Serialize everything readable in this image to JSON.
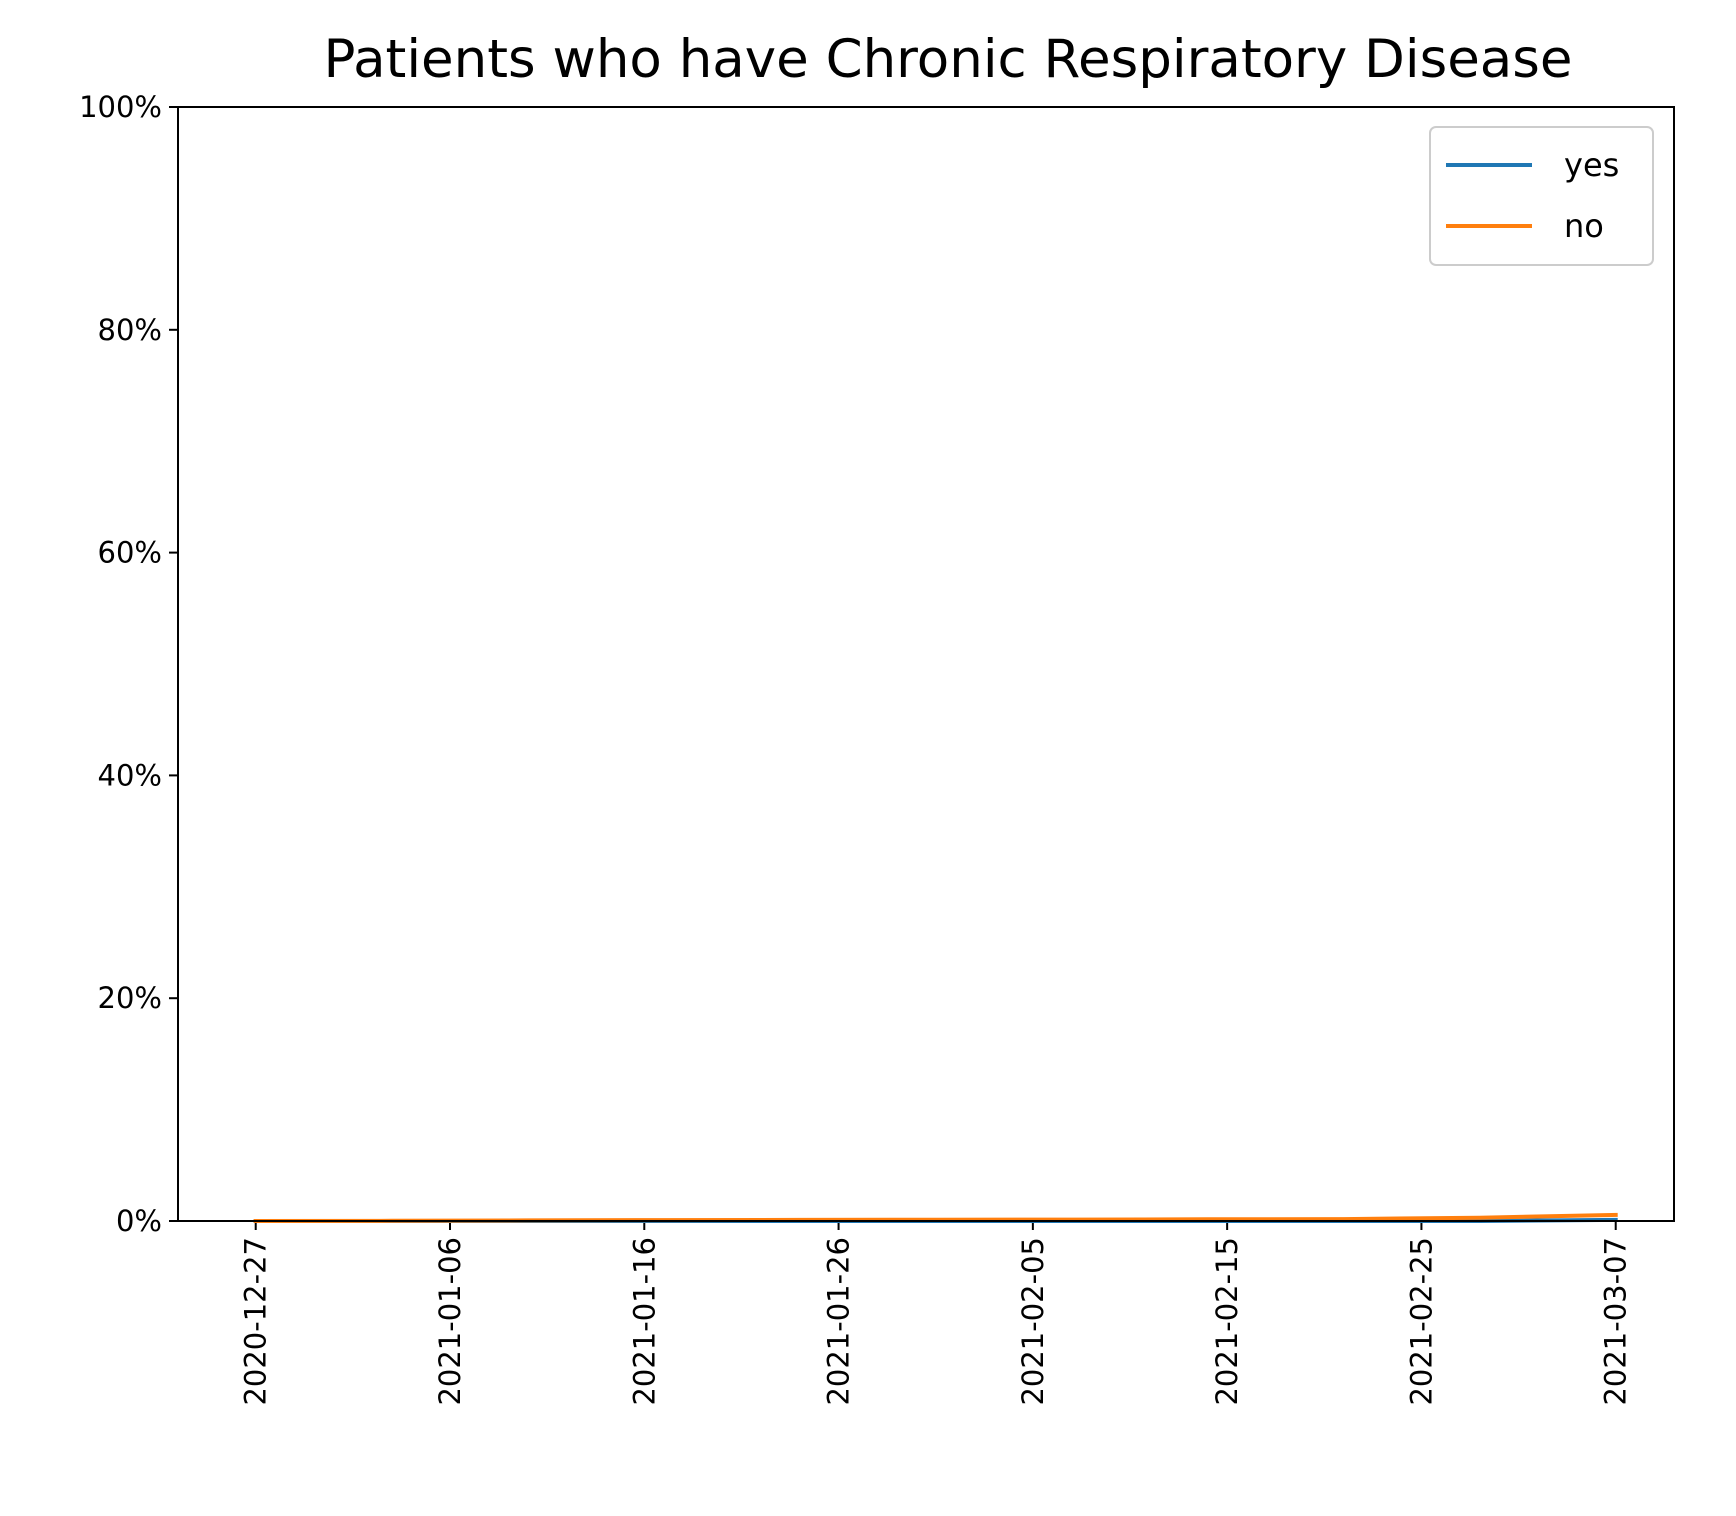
{
  "chart_data": {
    "type": "line",
    "title": "Patients who have Chronic Respiratory Disease",
    "xlabel": "",
    "ylabel": "",
    "x": [
      "2020-12-27",
      "2021-01-03",
      "2021-01-10",
      "2021-01-17",
      "2021-01-24",
      "2021-01-31",
      "2021-02-07",
      "2021-02-14",
      "2021-02-21",
      "2021-02-28",
      "2021-03-07"
    ],
    "x_ticks": [
      "2020-12-27",
      "2021-01-06",
      "2021-01-16",
      "2021-01-26",
      "2021-02-05",
      "2021-02-15",
      "2021-02-25",
      "2021-03-07"
    ],
    "x_range": [
      "2020-12-23",
      "2021-03-10"
    ],
    "ylim": [
      0,
      100
    ],
    "y_ticks": [
      "0%",
      "20%",
      "40%",
      "60%",
      "80%",
      "100%"
    ],
    "y_tick_values": [
      0,
      20,
      40,
      60,
      80,
      100
    ],
    "series": [
      {
        "name": "yes",
        "color": "#1f77b4",
        "values": [
          0.0,
          0.0,
          0.0,
          0.0,
          0.0,
          0.0,
          0.0,
          0.0,
          0.0,
          0.0,
          0.1
        ]
      },
      {
        "name": "no",
        "color": "#ff7f0e",
        "values": [
          0.0,
          0.02,
          0.05,
          0.08,
          0.1,
          0.12,
          0.13,
          0.15,
          0.17,
          0.3,
          0.55
        ]
      }
    ],
    "legend": {
      "position": "top-right"
    },
    "grid": false
  }
}
